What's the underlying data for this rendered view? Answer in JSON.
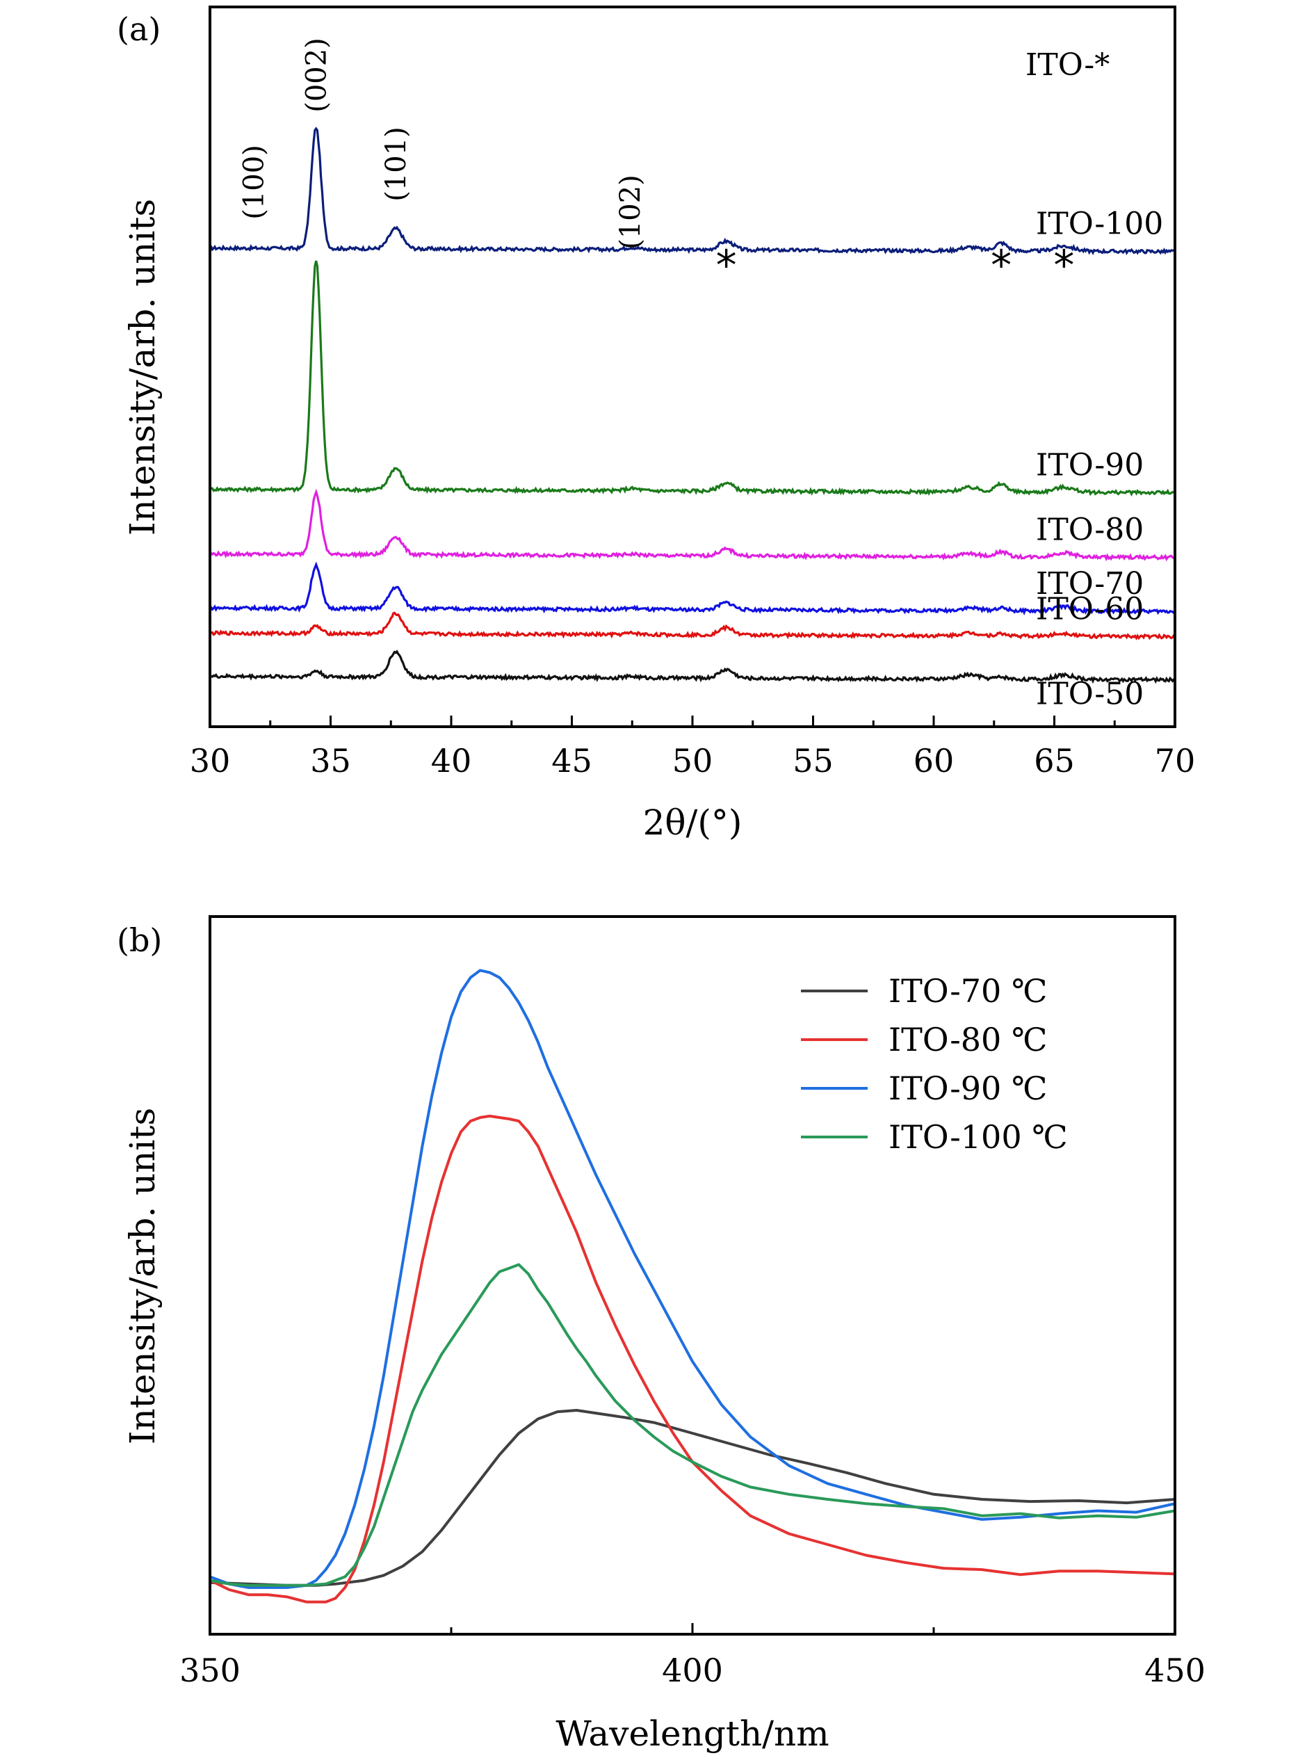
{
  "chart_data": [
    {
      "type": "line",
      "panel_label": "(a)",
      "xlabel": "2θ/(°)",
      "ylabel": "Intensity/arb. units",
      "xlim": [
        30,
        70
      ],
      "x_ticks": [
        30,
        35,
        40,
        45,
        50,
        55,
        60,
        65,
        70
      ],
      "y_ticks_shown": false,
      "legend_title": "ITO-*",
      "peak_labels": [
        {
          "text": "(100)",
          "x": 31.8
        },
        {
          "text": "(002)",
          "x": 34.4
        },
        {
          "text": "(101)",
          "x": 37.7
        },
        {
          "text": "(102)",
          "x": 47.4
        }
      ],
      "star_markers": [
        51.4,
        62.8,
        65.4
      ],
      "peaks": [
        {
          "center": 31.8,
          "width": 0.25
        },
        {
          "center": 34.4,
          "width": 0.2
        },
        {
          "center": 37.7,
          "width": 0.28
        },
        {
          "center": 47.5,
          "width": 0.3
        },
        {
          "center": 51.4,
          "width": 0.3
        },
        {
          "center": 61.5,
          "width": 0.4
        },
        {
          "center": 62.8,
          "width": 0.25
        },
        {
          "center": 65.4,
          "width": 0.4
        }
      ],
      "series": [
        {
          "name": "ITO-100",
          "color": "#0b1e7a",
          "baseline": 0.665,
          "amplitudes": [
            0.0,
            0.168,
            0.028,
            0.003,
            0.012,
            0.005,
            0.011,
            0.007
          ]
        },
        {
          "name": "ITO-90",
          "color": "#1a7a1a",
          "baseline": 0.33,
          "amplitudes": [
            0.0,
            0.32,
            0.03,
            0.003,
            0.011,
            0.006,
            0.011,
            0.007
          ]
        },
        {
          "name": "ITO-80",
          "color": "#e020e0",
          "baseline": 0.24,
          "amplitudes": [
            0.0,
            0.085,
            0.025,
            0.002,
            0.009,
            0.004,
            0.007,
            0.006
          ]
        },
        {
          "name": "ITO-70",
          "color": "#1010e0",
          "baseline": 0.165,
          "amplitudes": [
            0.0,
            0.06,
            0.03,
            0.002,
            0.01,
            0.004,
            0.004,
            0.006
          ]
        },
        {
          "name": "ITO-60",
          "color": "#e01010",
          "baseline": 0.13,
          "amplitudes": [
            0.0,
            0.01,
            0.028,
            0.002,
            0.01,
            0.004,
            0.003,
            0.004
          ]
        },
        {
          "name": "ITO-50",
          "color": "#111111",
          "baseline": 0.07,
          "amplitudes": [
            0.0,
            0.008,
            0.035,
            0.002,
            0.012,
            0.006,
            0.003,
            0.006
          ]
        }
      ]
    },
    {
      "type": "line",
      "panel_label": "(b)",
      "xlabel": "Wavelength/nm",
      "ylabel": "Intensity/arb. units",
      "xlim": [
        350,
        450
      ],
      "x_ticks": [
        350,
        400,
        450
      ],
      "x_minor_ticks": [
        375,
        425
      ],
      "ylim": [
        0,
        1
      ],
      "y_ticks_shown": false,
      "legend_position": "top-right",
      "series": [
        {
          "name": "ITO-70 ℃",
          "color": "#404040",
          "x": [
            350,
            354,
            358,
            361,
            363,
            366,
            368,
            370,
            372,
            374,
            376,
            378,
            380,
            382,
            384,
            386,
            388,
            390,
            393,
            396,
            400,
            404,
            408,
            412,
            416,
            420,
            425,
            430,
            435,
            440,
            445,
            450
          ],
          "y": [
            0.072,
            0.07,
            0.068,
            0.068,
            0.07,
            0.075,
            0.082,
            0.095,
            0.115,
            0.145,
            0.18,
            0.215,
            0.25,
            0.28,
            0.3,
            0.31,
            0.312,
            0.308,
            0.302,
            0.295,
            0.28,
            0.265,
            0.25,
            0.238,
            0.225,
            0.21,
            0.195,
            0.188,
            0.185,
            0.186,
            0.183,
            0.188
          ]
        },
        {
          "name": "ITO-80 ℃",
          "color": "#e63232",
          "x": [
            350,
            352,
            354,
            356,
            358,
            360,
            362,
            363,
            364,
            365,
            366,
            367,
            368,
            369,
            370,
            371,
            372,
            373,
            374,
            375,
            376,
            377,
            378,
            379,
            380,
            381,
            382,
            383,
            384,
            385,
            386,
            387,
            388,
            389,
            390,
            392,
            394,
            396,
            398,
            400,
            403,
            406,
            410,
            414,
            418,
            422,
            426,
            430,
            434,
            438,
            442,
            446,
            450
          ],
          "y": [
            0.075,
            0.062,
            0.055,
            0.055,
            0.052,
            0.045,
            0.045,
            0.05,
            0.065,
            0.09,
            0.13,
            0.18,
            0.24,
            0.31,
            0.38,
            0.45,
            0.52,
            0.58,
            0.63,
            0.67,
            0.7,
            0.715,
            0.72,
            0.722,
            0.72,
            0.718,
            0.715,
            0.7,
            0.68,
            0.65,
            0.62,
            0.59,
            0.56,
            0.525,
            0.49,
            0.43,
            0.375,
            0.325,
            0.28,
            0.24,
            0.2,
            0.165,
            0.14,
            0.125,
            0.11,
            0.1,
            0.092,
            0.09,
            0.083,
            0.088,
            0.088,
            0.086,
            0.084
          ]
        },
        {
          "name": "ITO-90 ℃",
          "color": "#1f6fe0",
          "x": [
            350,
            352,
            354,
            356,
            358,
            360,
            361,
            362,
            363,
            364,
            365,
            366,
            367,
            368,
            369,
            370,
            371,
            372,
            373,
            374,
            375,
            376,
            377,
            378,
            379,
            380,
            381,
            382,
            383,
            384,
            385,
            386,
            387,
            388,
            389,
            390,
            392,
            394,
            396,
            398,
            400,
            403,
            406,
            410,
            414,
            418,
            422,
            426,
            430,
            434,
            438,
            442,
            446,
            450
          ],
          "y": [
            0.08,
            0.07,
            0.065,
            0.065,
            0.065,
            0.068,
            0.075,
            0.09,
            0.11,
            0.14,
            0.18,
            0.23,
            0.29,
            0.36,
            0.44,
            0.52,
            0.6,
            0.68,
            0.75,
            0.81,
            0.86,
            0.895,
            0.915,
            0.925,
            0.922,
            0.915,
            0.9,
            0.88,
            0.855,
            0.825,
            0.79,
            0.76,
            0.73,
            0.7,
            0.67,
            0.64,
            0.585,
            0.53,
            0.48,
            0.43,
            0.38,
            0.32,
            0.275,
            0.235,
            0.21,
            0.195,
            0.18,
            0.17,
            0.16,
            0.163,
            0.168,
            0.172,
            0.17,
            0.182
          ]
        },
        {
          "name": "ITO-100 ℃",
          "color": "#2a9a5a",
          "x": [
            350,
            352,
            354,
            356,
            358,
            360,
            362,
            364,
            365,
            366,
            367,
            368,
            369,
            370,
            371,
            372,
            373,
            374,
            375,
            376,
            377,
            378,
            379,
            380,
            381,
            382,
            383,
            384,
            385,
            386,
            387,
            388,
            389,
            390,
            392,
            394,
            396,
            398,
            400,
            403,
            406,
            410,
            414,
            418,
            422,
            426,
            430,
            434,
            438,
            442,
            446,
            450
          ],
          "y": [
            0.075,
            0.07,
            0.068,
            0.068,
            0.068,
            0.068,
            0.07,
            0.08,
            0.095,
            0.12,
            0.15,
            0.19,
            0.23,
            0.27,
            0.31,
            0.34,
            0.365,
            0.39,
            0.41,
            0.43,
            0.45,
            0.47,
            0.49,
            0.505,
            0.51,
            0.515,
            0.502,
            0.48,
            0.462,
            0.44,
            0.418,
            0.398,
            0.38,
            0.36,
            0.325,
            0.298,
            0.275,
            0.255,
            0.24,
            0.22,
            0.205,
            0.195,
            0.188,
            0.182,
            0.178,
            0.175,
            0.165,
            0.168,
            0.162,
            0.165,
            0.163,
            0.172
          ]
        }
      ]
    }
  ]
}
